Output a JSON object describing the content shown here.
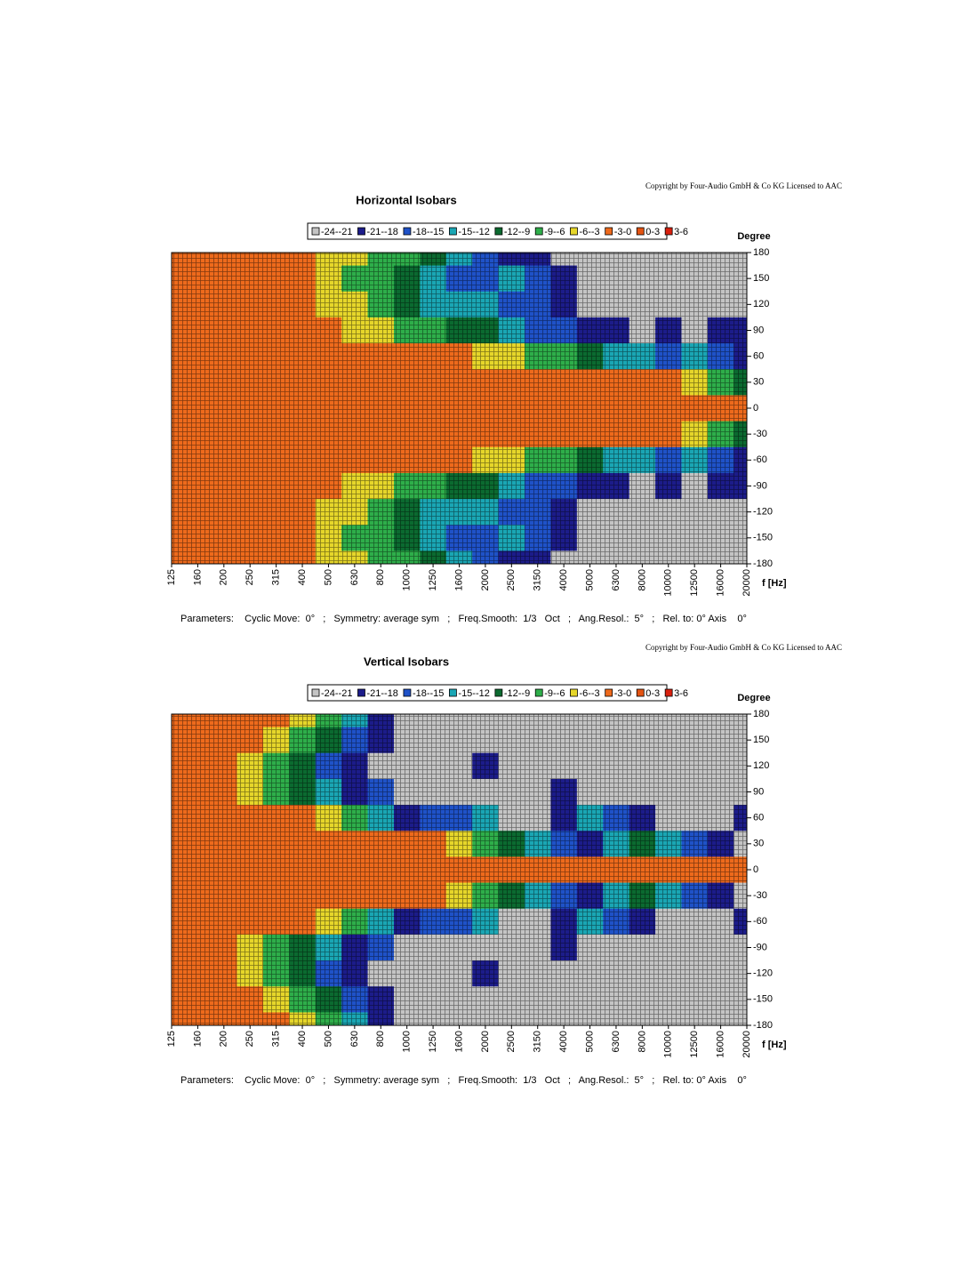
{
  "chart_data": [
    {
      "type": "contour",
      "title": "Horizontal Isobars",
      "copyright": "Copyright by Four-Audio GmbH & Co KG   Licensed to AAC",
      "xlabel": "f [Hz]",
      "ylabel": "Degree",
      "parameters": "Parameters:    Cyclic Move:  0°   ;   Symmetry: average sym   ;   Freq.Smooth:  1/3   Oct   ;   Ang.Resol.:  5°   ;   Rel. to: 0° Axis    0°",
      "x": [
        125,
        160,
        200,
        250,
        315,
        400,
        500,
        630,
        800,
        1000,
        1250,
        1600,
        2000,
        2500,
        3150,
        4000,
        5000,
        6300,
        8000,
        10000,
        12500,
        16000,
        20000
      ],
      "ylim": [
        -180,
        180
      ],
      "yticks": [
        180,
        150,
        120,
        90,
        60,
        30,
        0,
        -30,
        -60,
        -90,
        -120,
        -150,
        -180
      ],
      "levels": [
        {
          "label": "-24--21",
          "range": [
            -24,
            -21
          ],
          "color": "#c4c4c4"
        },
        {
          "label": "-21--18",
          "range": [
            -21,
            -18
          ],
          "color": "#1c1c8a"
        },
        {
          "label": "-18--15",
          "range": [
            -18,
            -15
          ],
          "color": "#1f52c8"
        },
        {
          "label": "-15--12",
          "range": [
            -15,
            -12
          ],
          "color": "#1aa6b4"
        },
        {
          "label": "-12--9",
          "range": [
            -12,
            -9
          ],
          "color": "#0b6a30"
        },
        {
          "label": "-9--6",
          "range": [
            -9,
            -6
          ],
          "color": "#2eae4a"
        },
        {
          "label": "-6--3",
          "range": [
            -6,
            -3
          ],
          "color": "#e6d62a"
        },
        {
          "label": "-3-0",
          "range": [
            -3,
            0
          ],
          "color": "#ee6a1c"
        },
        {
          "label": "0-3",
          "range": [
            0,
            3
          ],
          "color": "#e45412"
        },
        {
          "label": "3-6",
          "range": [
            3,
            6
          ],
          "color": "#d8200e"
        }
      ],
      "z": [
        [
          -1.5,
          -1.5,
          -1.5,
          -1.5,
          -1.5,
          -1.5,
          -4.5,
          -4.5,
          -7.5,
          -7.5,
          -10.5,
          -13.5,
          -16.5,
          -19.5,
          -19.5,
          -22.5,
          -22.5,
          -22.5,
          -22.5,
          -22.5,
          -22.5,
          -22.5,
          -22.5
        ],
        [
          -1.5,
          -1.5,
          -1.5,
          -1.5,
          -1.5,
          -1.5,
          -4.5,
          -7.5,
          -7.5,
          -10.5,
          -13.5,
          -16.5,
          -16.5,
          -13.5,
          -16.5,
          -19.5,
          -22.5,
          -22.5,
          -22.5,
          -22.5,
          -22.5,
          -22.5,
          -22.5
        ],
        [
          -1.5,
          -1.5,
          -1.5,
          -1.5,
          -1.5,
          -1.5,
          -4.5,
          -4.5,
          -7.5,
          -10.5,
          -13.5,
          -13.5,
          -13.5,
          -16.5,
          -16.5,
          -19.5,
          -22.5,
          -22.5,
          -22.5,
          -22.5,
          -22.5,
          -22.5,
          -22.5
        ],
        [
          -1.5,
          -1.5,
          -1.5,
          -1.5,
          -1.5,
          -1.5,
          -1.5,
          -4.5,
          -4.5,
          -7.5,
          -7.5,
          -10.5,
          -10.5,
          -13.5,
          -16.5,
          -16.5,
          -19.5,
          -19.5,
          -22.5,
          -19.5,
          -22.5,
          -19.5,
          -19.5
        ],
        [
          -1.5,
          -1.5,
          -1.5,
          -1.5,
          -1.5,
          -1.5,
          -1.5,
          -1.5,
          -1.5,
          -1.5,
          -1.5,
          -1.5,
          -4.5,
          -4.5,
          -7.5,
          -7.5,
          -10.5,
          -13.5,
          -13.5,
          -16.5,
          -13.5,
          -16.5,
          -19.5
        ],
        [
          -1.5,
          -1.5,
          -1.5,
          -1.5,
          -1.5,
          -1.5,
          -1.5,
          -1.5,
          -1.5,
          -1.5,
          -1.5,
          -1.5,
          -1.5,
          -1.5,
          -1.5,
          -1.5,
          -1.5,
          -1.5,
          -1.5,
          -1.5,
          -4.5,
          -7.5,
          -10.5
        ],
        [
          -1.5,
          -1.5,
          -1.5,
          -1.5,
          -1.5,
          -1.5,
          -1.5,
          -1.5,
          -1.5,
          -1.5,
          -1.5,
          -1.5,
          -1.5,
          -1.5,
          -1.5,
          -1.5,
          -1.5,
          -1.5,
          -1.5,
          -1.5,
          -1.5,
          -1.5,
          -1.5
        ],
        [
          -1.5,
          -1.5,
          -1.5,
          -1.5,
          -1.5,
          -1.5,
          -1.5,
          -1.5,
          -1.5,
          -1.5,
          -1.5,
          -1.5,
          -1.5,
          -1.5,
          -1.5,
          -1.5,
          -1.5,
          -1.5,
          -1.5,
          -1.5,
          -4.5,
          -7.5,
          -10.5
        ],
        [
          -1.5,
          -1.5,
          -1.5,
          -1.5,
          -1.5,
          -1.5,
          -1.5,
          -1.5,
          -1.5,
          -1.5,
          -1.5,
          -1.5,
          -4.5,
          -4.5,
          -7.5,
          -7.5,
          -10.5,
          -13.5,
          -13.5,
          -16.5,
          -13.5,
          -16.5,
          -19.5
        ],
        [
          -1.5,
          -1.5,
          -1.5,
          -1.5,
          -1.5,
          -1.5,
          -1.5,
          -4.5,
          -4.5,
          -7.5,
          -7.5,
          -10.5,
          -10.5,
          -13.5,
          -16.5,
          -16.5,
          -19.5,
          -19.5,
          -22.5,
          -19.5,
          -22.5,
          -19.5,
          -19.5
        ],
        [
          -1.5,
          -1.5,
          -1.5,
          -1.5,
          -1.5,
          -1.5,
          -4.5,
          -4.5,
          -7.5,
          -10.5,
          -13.5,
          -13.5,
          -13.5,
          -16.5,
          -16.5,
          -19.5,
          -22.5,
          -22.5,
          -22.5,
          -22.5,
          -22.5,
          -22.5,
          -22.5
        ],
        [
          -1.5,
          -1.5,
          -1.5,
          -1.5,
          -1.5,
          -1.5,
          -4.5,
          -7.5,
          -7.5,
          -10.5,
          -13.5,
          -16.5,
          -16.5,
          -13.5,
          -16.5,
          -19.5,
          -22.5,
          -22.5,
          -22.5,
          -22.5,
          -22.5,
          -22.5,
          -22.5
        ],
        [
          -1.5,
          -1.5,
          -1.5,
          -1.5,
          -1.5,
          -1.5,
          -4.5,
          -4.5,
          -7.5,
          -7.5,
          -10.5,
          -13.5,
          -16.5,
          -19.5,
          -19.5,
          -22.5,
          -22.5,
          -22.5,
          -22.5,
          -22.5,
          -22.5,
          -22.5,
          -22.5
        ]
      ]
    },
    {
      "type": "contour",
      "title": "Vertical Isobars",
      "copyright": "Copyright by Four-Audio GmbH & Co KG   Licensed to AAC",
      "xlabel": "f [Hz]",
      "ylabel": "Degree",
      "parameters": "Parameters:    Cyclic Move:  0°   ;   Symmetry: average sym   ;   Freq.Smooth:  1/3   Oct   ;   Ang.Resol.:  5°   ;   Rel. to: 0° Axis    0°",
      "x": [
        125,
        160,
        200,
        250,
        315,
        400,
        500,
        630,
        800,
        1000,
        1250,
        1600,
        2000,
        2500,
        3150,
        4000,
        5000,
        6300,
        8000,
        10000,
        12500,
        16000,
        20000
      ],
      "ylim": [
        -180,
        180
      ],
      "yticks": [
        180,
        150,
        120,
        90,
        60,
        30,
        0,
        -30,
        -60,
        -90,
        -120,
        -150,
        -180
      ],
      "levels": [
        {
          "label": "-24--21",
          "range": [
            -24,
            -21
          ],
          "color": "#c4c4c4"
        },
        {
          "label": "-21--18",
          "range": [
            -21,
            -18
          ],
          "color": "#1c1c8a"
        },
        {
          "label": "-18--15",
          "range": [
            -18,
            -15
          ],
          "color": "#1f52c8"
        },
        {
          "label": "-15--12",
          "range": [
            -15,
            -12
          ],
          "color": "#1aa6b4"
        },
        {
          "label": "-12--9",
          "range": [
            -12,
            -9
          ],
          "color": "#0b6a30"
        },
        {
          "label": "-9--6",
          "range": [
            -9,
            -6
          ],
          "color": "#2eae4a"
        },
        {
          "label": "-6--3",
          "range": [
            -6,
            -3
          ],
          "color": "#e6d62a"
        },
        {
          "label": "-3-0",
          "range": [
            -3,
            0
          ],
          "color": "#ee6a1c"
        },
        {
          "label": "0-3",
          "range": [
            0,
            3
          ],
          "color": "#e45412"
        },
        {
          "label": "3-6",
          "range": [
            3,
            6
          ],
          "color": "#d8200e"
        }
      ],
      "z": [
        [
          -1.5,
          -1.5,
          -1.5,
          -1.5,
          -1.5,
          -4.5,
          -7.5,
          -13.5,
          -19.5,
          -22.5,
          -22.5,
          -22.5,
          -22.5,
          -22.5,
          -22.5,
          -22.5,
          -22.5,
          -22.5,
          -22.5,
          -22.5,
          -22.5,
          -22.5,
          -22.5
        ],
        [
          -1.5,
          -1.5,
          -1.5,
          -1.5,
          -4.5,
          -7.5,
          -10.5,
          -16.5,
          -19.5,
          -22.5,
          -22.5,
          -22.5,
          -22.5,
          -22.5,
          -22.5,
          -22.5,
          -22.5,
          -22.5,
          -22.5,
          -22.5,
          -22.5,
          -22.5,
          -22.5
        ],
        [
          -1.5,
          -1.5,
          -1.5,
          -4.5,
          -7.5,
          -10.5,
          -16.5,
          -19.5,
          -22.5,
          -22.5,
          -22.5,
          -22.5,
          -19.5,
          -22.5,
          -22.5,
          -22.5,
          -22.5,
          -22.5,
          -22.5,
          -22.5,
          -22.5,
          -22.5,
          -22.5
        ],
        [
          -1.5,
          -1.5,
          -1.5,
          -4.5,
          -7.5,
          -10.5,
          -13.5,
          -19.5,
          -16.5,
          -22.5,
          -22.5,
          -22.5,
          -22.5,
          -22.5,
          -22.5,
          -19.5,
          -22.5,
          -22.5,
          -22.5,
          -22.5,
          -22.5,
          -22.5,
          -22.5
        ],
        [
          -1.5,
          -1.5,
          -1.5,
          -1.5,
          -1.5,
          -1.5,
          -4.5,
          -7.5,
          -13.5,
          -19.5,
          -16.5,
          -16.5,
          -13.5,
          -22.5,
          -22.5,
          -19.5,
          -13.5,
          -16.5,
          -19.5,
          -22.5,
          -22.5,
          -22.5,
          -19.5
        ],
        [
          -1.5,
          -1.5,
          -1.5,
          -1.5,
          -1.5,
          -1.5,
          -1.5,
          -1.5,
          -1.5,
          -1.5,
          -1.5,
          -4.5,
          -7.5,
          -10.5,
          -13.5,
          -16.5,
          -19.5,
          -13.5,
          -10.5,
          -13.5,
          -16.5,
          -19.5,
          -22.5
        ],
        [
          -1.5,
          -1.5,
          -1.5,
          -1.5,
          -1.5,
          -1.5,
          -1.5,
          -1.5,
          -1.5,
          -1.5,
          -1.5,
          -1.5,
          -1.5,
          -1.5,
          -1.5,
          -1.5,
          -1.5,
          -1.5,
          -1.5,
          -1.5,
          -1.5,
          -1.5,
          -1.5
        ],
        [
          -1.5,
          -1.5,
          -1.5,
          -1.5,
          -1.5,
          -1.5,
          -1.5,
          -1.5,
          -1.5,
          -1.5,
          -1.5,
          -4.5,
          -7.5,
          -10.5,
          -13.5,
          -16.5,
          -19.5,
          -13.5,
          -10.5,
          -13.5,
          -16.5,
          -19.5,
          -22.5
        ],
        [
          -1.5,
          -1.5,
          -1.5,
          -1.5,
          -1.5,
          -1.5,
          -4.5,
          -7.5,
          -13.5,
          -19.5,
          -16.5,
          -16.5,
          -13.5,
          -22.5,
          -22.5,
          -19.5,
          -13.5,
          -16.5,
          -19.5,
          -22.5,
          -22.5,
          -22.5,
          -19.5
        ],
        [
          -1.5,
          -1.5,
          -1.5,
          -4.5,
          -7.5,
          -10.5,
          -13.5,
          -19.5,
          -16.5,
          -22.5,
          -22.5,
          -22.5,
          -22.5,
          -22.5,
          -22.5,
          -19.5,
          -22.5,
          -22.5,
          -22.5,
          -22.5,
          -22.5,
          -22.5,
          -22.5
        ],
        [
          -1.5,
          -1.5,
          -1.5,
          -4.5,
          -7.5,
          -10.5,
          -16.5,
          -19.5,
          -22.5,
          -22.5,
          -22.5,
          -22.5,
          -19.5,
          -22.5,
          -22.5,
          -22.5,
          -22.5,
          -22.5,
          -22.5,
          -22.5,
          -22.5,
          -22.5,
          -22.5
        ],
        [
          -1.5,
          -1.5,
          -1.5,
          -1.5,
          -4.5,
          -7.5,
          -10.5,
          -16.5,
          -19.5,
          -22.5,
          -22.5,
          -22.5,
          -22.5,
          -22.5,
          -22.5,
          -22.5,
          -22.5,
          -22.5,
          -22.5,
          -22.5,
          -22.5,
          -22.5,
          -22.5
        ],
        [
          -1.5,
          -1.5,
          -1.5,
          -1.5,
          -1.5,
          -4.5,
          -7.5,
          -13.5,
          -19.5,
          -22.5,
          -22.5,
          -22.5,
          -22.5,
          -22.5,
          -22.5,
          -22.5,
          -22.5,
          -22.5,
          -22.5,
          -22.5,
          -22.5,
          -22.5,
          -22.5
        ]
      ]
    }
  ]
}
